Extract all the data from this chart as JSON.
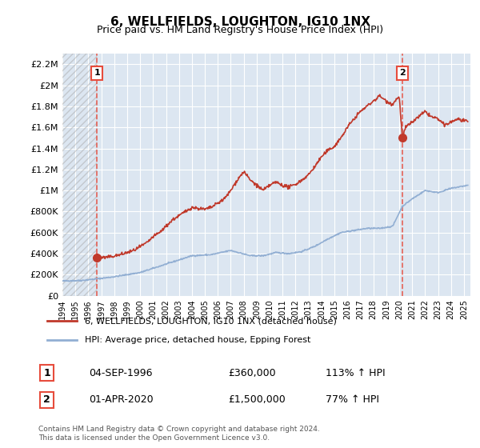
{
  "title": "6, WELLFIELDS, LOUGHTON, IG10 1NX",
  "subtitle": "Price paid vs. HM Land Registry's House Price Index (HPI)",
  "ylabel": "",
  "ylim": [
    0,
    2300000
  ],
  "yticks": [
    0,
    200000,
    400000,
    600000,
    800000,
    1000000,
    1200000,
    1400000,
    1600000,
    1800000,
    2000000,
    2200000
  ],
  "ytick_labels": [
    "£0",
    "£200K",
    "£400K",
    "£600K",
    "£800K",
    "£1M",
    "£1.2M",
    "£1.4M",
    "£1.6M",
    "£1.8M",
    "£2M",
    "£2.2M"
  ],
  "xlim_start": 1994.0,
  "xlim_end": 2025.5,
  "xtick_years": [
    1994,
    1995,
    1996,
    1997,
    1998,
    1999,
    2000,
    2001,
    2002,
    2003,
    2004,
    2005,
    2006,
    2007,
    2008,
    2009,
    2010,
    2011,
    2012,
    2013,
    2014,
    2015,
    2016,
    2017,
    2018,
    2019,
    2020,
    2021,
    2022,
    2023,
    2024,
    2025
  ],
  "background_color": "#ffffff",
  "plot_bg_color": "#dce6f1",
  "grid_color": "#ffffff",
  "hpi_line_color": "#92afd3",
  "price_line_color": "#c0392b",
  "sale1_x": 1996.67,
  "sale1_y": 360000,
  "sale1_label": "1",
  "sale1_date": "04-SEP-1996",
  "sale1_price": "£360,000",
  "sale1_hpi": "113% ↑ HPI",
  "sale2_x": 2020.25,
  "sale2_y": 1500000,
  "sale2_label": "2",
  "sale2_date": "01-APR-2020",
  "sale2_price": "£1,500,000",
  "sale2_hpi": "77% ↑ HPI",
  "vline1_x": 1996.67,
  "vline2_x": 2020.25,
  "legend1_label": "6, WELLFIELDS, LOUGHTON, IG10 1NX (detached house)",
  "legend2_label": "HPI: Average price, detached house, Epping Forest",
  "footer1": "Contains HM Land Registry data © Crown copyright and database right 2024.",
  "footer2": "This data is licensed under the Open Government Licence v3.0."
}
